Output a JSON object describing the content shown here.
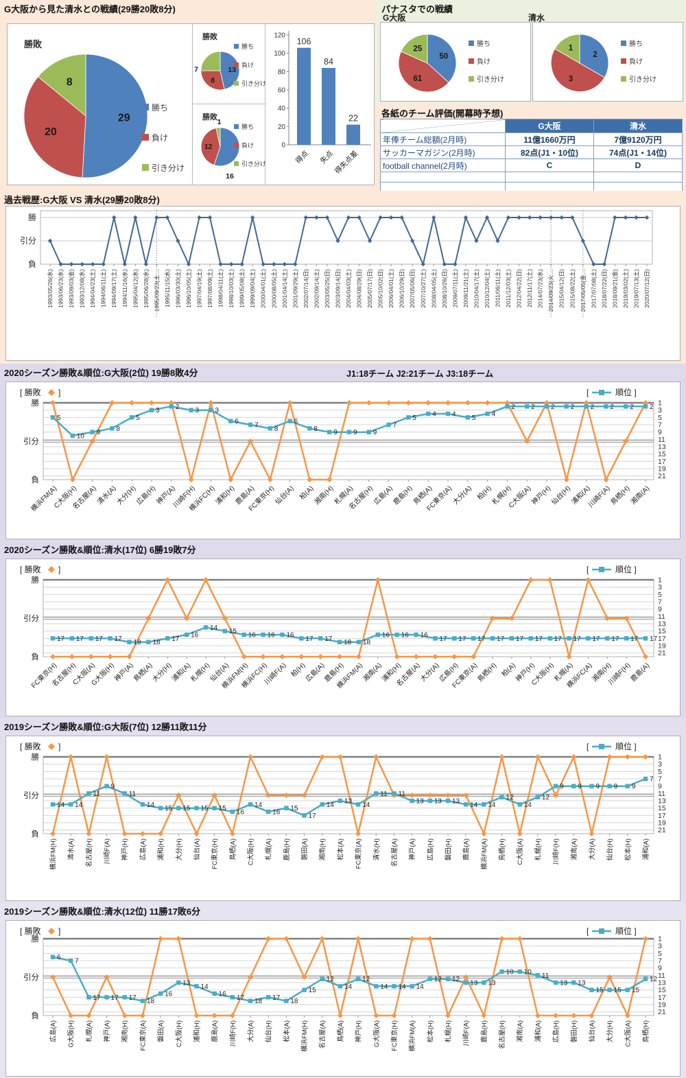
{
  "colors": {
    "win": "#4F81BD",
    "lose": "#C0504D",
    "draw": "#9BBB59",
    "result": "#F79646",
    "rank": "#4BACC6",
    "history": "#44688F"
  },
  "legend_labels": [
    "勝ち",
    "負け",
    "引き分け"
  ],
  "axis": {
    "rank_ticks": [
      1,
      3,
      5,
      7,
      9,
      11,
      13,
      15,
      17,
      19,
      21
    ]
  },
  "sections": {
    "head_to_head": {
      "title": "G大阪から見た清水との戦績(29勝20敗8分)"
    },
    "panasta": {
      "title": "パナスタでの戦績",
      "teams": [
        "G大阪",
        "清水"
      ]
    },
    "ratings_table": {
      "title": "各紙のチーム評価(開幕時予想)"
    },
    "history": {
      "title": "過去戦歴:G大阪 VS 清水(29勝20敗8分)"
    },
    "season_2020_gamba": {
      "title": "2020シーズン勝敗&順位:G大阪(2位) 19勝8敗4分",
      "note": "J1:18チーム  J2:21チーム  J3:18チーム"
    },
    "season_2020_shimizu": {
      "title": "2020シーズン勝敗&順位:清水(17位) 6勝19敗7分"
    },
    "season_2019_gamba": {
      "title": "2019シーズン勝敗&順位:G大阪(7位) 12勝11敗11分"
    },
    "season_2019_shimizu": {
      "title": "2019シーズン勝敗&順位:清水(12位) 11勝17敗6分"
    }
  },
  "chart_data": {
    "overall_pie": {
      "type": "pie",
      "title": "勝敗",
      "labels": [
        "勝ち",
        "負け",
        "引き分け"
      ],
      "values": [
        29,
        20,
        8
      ]
    },
    "away_pie": {
      "type": "pie",
      "title": "勝敗",
      "labels": [
        "勝ち",
        "負け",
        "引き分け"
      ],
      "values": [
        13,
        8,
        7
      ]
    },
    "home_pie": {
      "type": "pie",
      "title": "勝敗",
      "labels": [
        "勝ち",
        "負け",
        "引き分け"
      ],
      "values": [
        16,
        12,
        1
      ]
    },
    "goals_bar": {
      "type": "bar",
      "categories": [
        "得点",
        "失点",
        "得失点差"
      ],
      "values": [
        106,
        84,
        22
      ],
      "ylabel": "",
      "ylim": [
        0,
        120
      ],
      "ystep": 20
    },
    "panasta_gamba_pie": {
      "type": "pie",
      "labels": [
        "勝ち",
        "負け",
        "引き分け"
      ],
      "values": [
        50,
        61,
        25
      ]
    },
    "panasta_shimizu_pie": {
      "type": "pie",
      "labels": [
        "勝ち",
        "負け",
        "引き分け"
      ],
      "values": [
        2,
        3,
        1
      ]
    },
    "ratings_table": {
      "type": "table",
      "columns": [
        "G大阪",
        "清水"
      ],
      "rows": [
        {
          "label": "年俸チーム総額(2月時)",
          "values": [
            "11億1660万円",
            "7億9120万円"
          ]
        },
        {
          "label": "サッカーマガジン(2月時)",
          "values": [
            "82点(J1・10位)",
            "74点(J1・14位)"
          ]
        },
        {
          "label": "football channel(2月時)",
          "values": [
            "C",
            "D"
          ]
        },
        {
          "label": "",
          "values": [
            "",
            ""
          ]
        },
        {
          "label": "",
          "values": [
            "",
            ""
          ]
        }
      ]
    },
    "history_line": {
      "type": "line",
      "y_levels": [
        "勝",
        "引分",
        "負"
      ],
      "dates": [
        "1993/05/26(水)",
        "1993/06/23(水)",
        "1993/09/03(金)",
        "1993/12/08(水)",
        "1994/04/23(土)",
        "1994/06/11(土)",
        "1994/09/17(土)",
        "1994/11/16(水)",
        "1995/04/12(水)",
        "1995/06/28(水)",
        "1995/09/23(土…",
        "1995/11/15(水)",
        "1996/03/30(土)",
        "1996/10/05(土)",
        "1997/04/19(土)",
        "1997/08/09(土)",
        "1998/04/11(土)",
        "1998/10/03(土)",
        "1999/05/08(土)",
        "1999/09/04(土)",
        "2000/04/01(土)",
        "2000/08/05(土)",
        "2001/04/14(土)",
        "2001/09/29(土)",
        "2002/07/14(日)",
        "2002/09/14(土)",
        "2003/05/25(日)",
        "2003/09/14(日)",
        "2004/04/03(土)",
        "2004/08/29(日)",
        "2005/07/17(日)",
        "2005/10/02(日)",
        "2006/04/01(土)",
        "2006/10/29(日)",
        "2007/05/06(日)",
        "2007/10/27(土)",
        "2008/04/05(土)",
        "2008/10/26(日)",
        "2009/07/11(土)",
        "2009/11/21(土)",
        "2010/04/17(土)",
        "2010/12/04(土)",
        "2011/06/11(土)",
        "2011/12/03(土)",
        "2012/04/22(日)",
        "2012/11/17(土)",
        "2014/07/23(水)",
        "2014/09/23(火…",
        "2015/04/12(日)",
        "2015/08/22(土)",
        "2017/05/05(金…",
        "2017/07/08(土)",
        "2018/07/22(日)",
        "2018/09/21(金)",
        "2019/03/02(土)",
        "2019/07/13(土)",
        "2020/07/12(日)"
      ],
      "results": [
        "引分",
        "負",
        "負",
        "負",
        "負",
        "負",
        "勝",
        "負",
        "勝",
        "負",
        "勝",
        "勝",
        "引分",
        "負",
        "勝",
        "勝",
        "負",
        "負",
        "負",
        "勝",
        "負",
        "負",
        "負",
        "負",
        "勝",
        "勝",
        "勝",
        "引分",
        "勝",
        "勝",
        "引分",
        "勝",
        "勝",
        "勝",
        "引分",
        "負",
        "勝",
        "負",
        "負",
        "勝",
        "引分",
        "勝",
        "引分",
        "勝",
        "勝",
        "勝",
        "勝",
        "勝",
        "勝",
        "勝",
        "引分",
        "負",
        "負",
        "勝",
        "勝",
        "勝",
        "勝"
      ]
    },
    "season_2020_gamba": {
      "type": "line",
      "legend": [
        "勝敗",
        "順位"
      ],
      "y_left": [
        "勝",
        "引分",
        "負"
      ],
      "opponents": [
        "横浜FM(A)",
        "C大阪(H)",
        "名古屋(A)",
        "清水(A)",
        "大分(H)",
        "広島(H)",
        "神戸(A)",
        "川崎F(H)",
        "横浜FC(H)",
        "浦和(H)",
        "鹿島(A)",
        "FC東京(H)",
        "仙台(A)",
        "柏(A)",
        "湘南(H)",
        "札幌(A)",
        "名古屋(H)",
        "広島(A)",
        "鹿島(H)",
        "鳥栖(A)",
        "FC東京(A)",
        "大分(A)",
        "柏(H)",
        "札幌(H)",
        "C大阪(A)",
        "神戸(H)",
        "仙台(H)",
        "浦和(A)",
        "川崎F(A)",
        "鳥栖(H)",
        "湘南(A)"
      ],
      "results": [
        "勝",
        "負",
        "引分",
        "勝",
        "勝",
        "勝",
        "勝",
        "負",
        "勝",
        "負",
        "引分",
        "負",
        "勝",
        "負",
        "負",
        "勝",
        "勝",
        "勝",
        "勝",
        "勝",
        "勝",
        "勝",
        "勝",
        "勝",
        "引分",
        "勝",
        "負",
        "勝",
        "負",
        "引分",
        "勝"
      ],
      "ranks": [
        5,
        10,
        9,
        8,
        5,
        3,
        2,
        3,
        3,
        6,
        7,
        8,
        6,
        8,
        9,
        9,
        9,
        7,
        5,
        4,
        4,
        5,
        4,
        2,
        2,
        2,
        2,
        2,
        2,
        2,
        2
      ]
    },
    "season_2020_shimizu": {
      "type": "line",
      "legend": [
        "勝敗",
        "順位"
      ],
      "y_left": [
        "勝",
        "引分",
        "負"
      ],
      "opponents": [
        "FC東京(H)",
        "名古屋(H)",
        "C大阪(A)",
        "G大阪(H)",
        "神戸(A)",
        "鳥栖(A)",
        "大分(H)",
        "浦和(A)",
        "札幌(H)",
        "仙台(A)",
        "横浜FM(H)",
        "横浜FC(H)",
        "川崎F(A)",
        "柏(H)",
        "広島(A)",
        "鹿島(H)",
        "横浜FM(A)",
        "湘南(A)",
        "浦和(H)",
        "名古屋(A)",
        "大分(A)",
        "広島(H)",
        "FC東京(A)",
        "鳥栖(H)",
        "柏(A)",
        "神戸(H)",
        "C大阪(H)",
        "札幌(A)",
        "横浜FC(A)",
        "湘南(H)",
        "川崎F(H)",
        "鹿島(A)"
      ],
      "results": [
        "負",
        "負",
        "負",
        "負",
        "負",
        "引分",
        "勝",
        "引分",
        "勝",
        "引分",
        "負",
        "負",
        "負",
        "負",
        "負",
        "負",
        "負",
        "勝",
        "負",
        "負",
        "負",
        "負",
        "負",
        "引分",
        "引分",
        "勝",
        "勝",
        "負",
        "勝",
        "引分",
        "引分",
        "負"
      ],
      "ranks": [
        17,
        17,
        17,
        17,
        18,
        18,
        17,
        16,
        14,
        15,
        16,
        16,
        16,
        17,
        17,
        18,
        18,
        16,
        16,
        16,
        17,
        17,
        17,
        17,
        17,
        17,
        17,
        17,
        17,
        17,
        17,
        17
      ]
    },
    "season_2019_gamba": {
      "type": "line",
      "legend": [
        "勝敗",
        "順位"
      ],
      "y_left": [
        "勝",
        "引分",
        "負"
      ],
      "opponents": [
        "横浜FM(H)",
        "清水(A)",
        "名古屋(H)",
        "川崎F(A)",
        "神戸(H)",
        "広島(A)",
        "浦和(H)",
        "大分(H)",
        "仙台(A)",
        "FC東京(H)",
        "鳥栖(A)",
        "C大阪(H)",
        "札幌(A)",
        "鹿島(H)",
        "磐田(A)",
        "湘南(H)",
        "松本(A)",
        "FC東京(A)",
        "清水(H)",
        "名古屋(A)",
        "神戸(A)",
        "広島(H)",
        "磐田(H)",
        "鹿島(A)",
        "横浜FM(A)",
        "鳥栖(H)",
        "C大阪(A)",
        "札幌(H)",
        "川崎F(H)",
        "湘南(A)",
        "大分(A)",
        "仙台(H)",
        "松本(H)",
        "浦和(A)"
      ],
      "results": [
        "負",
        "勝",
        "負",
        "勝",
        "負",
        "負",
        "負",
        "引分",
        "負",
        "引分",
        "負",
        "勝",
        "引分",
        "引分",
        "引分",
        "勝",
        "勝",
        "負",
        "勝",
        "引分",
        "引分",
        "引分",
        "引分",
        "引分",
        "負",
        "勝",
        "負",
        "勝",
        "引分",
        "勝",
        "負",
        "勝",
        "勝",
        "勝"
      ],
      "ranks": [
        14,
        14,
        11,
        9,
        11,
        14,
        15,
        15,
        15,
        15,
        16,
        14,
        16,
        15,
        17,
        14,
        13,
        14,
        11,
        11,
        13,
        13,
        13,
        14,
        14,
        12,
        14,
        12,
        9,
        9,
        9,
        9,
        9,
        7
      ]
    },
    "season_2019_shimizu": {
      "type": "line",
      "legend": [
        "勝敗",
        "順位"
      ],
      "y_left": [
        "勝",
        "引分",
        "負"
      ],
      "opponents": [
        "広島(A)",
        "G大阪(H)",
        "札幌(A)",
        "神戸(A)",
        "湘南(H)",
        "FC東京(A)",
        "磐田(A)",
        "C大阪(H)",
        "浦和(H)",
        "鹿島(A)",
        "川崎F(H)",
        "大分(A)",
        "仙台(H)",
        "松本(A)",
        "横浜FM(H)",
        "名古屋(A)",
        "鳥栖(A)",
        "神戸(H)",
        "G大阪(A)",
        "FC東京(H)",
        "横浜FM(A)",
        "松本(H)",
        "札幌(H)",
        "川崎F(A)",
        "鹿島(H)",
        "名古屋(H)",
        "湘南(A)",
        "浦和(A)",
        "広島(H)",
        "磐田(H)",
        "仙台(A)",
        "大分(H)",
        "C大阪(A)",
        "鳥栖(H)"
      ],
      "results": [
        "引分",
        "負",
        "負",
        "引分",
        "負",
        "負",
        "勝",
        "勝",
        "負",
        "負",
        "負",
        "引分",
        "勝",
        "勝",
        "引分",
        "勝",
        "負",
        "勝",
        "負",
        "負",
        "勝",
        "勝",
        "負",
        "引分",
        "負",
        "勝",
        "勝",
        "負",
        "負",
        "負",
        "負",
        "引分",
        "負",
        "勝"
      ],
      "ranks": [
        6,
        7,
        17,
        17,
        17,
        18,
        16,
        13,
        14,
        16,
        17,
        18,
        17,
        18,
        15,
        12,
        14,
        12,
        14,
        14,
        14,
        12,
        12,
        13,
        13,
        10,
        10,
        11,
        13,
        13,
        15,
        15,
        15,
        12
      ]
    }
  }
}
